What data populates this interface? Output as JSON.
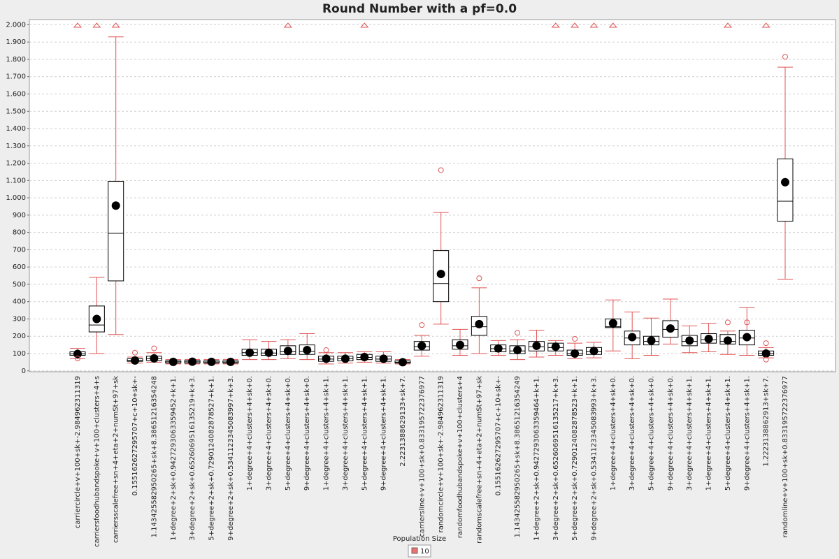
{
  "chart_data": {
    "type": "box",
    "title": "Round Number with a pf=0.0",
    "legend_title": "Population Size",
    "series": [
      {
        "name": "10",
        "color": "#f07070"
      }
    ],
    "box_color": "#000000",
    "whisker_color": "#e05555",
    "mean_color": "#000000",
    "grid": true,
    "ylim": [
      -5,
      2030
    ],
    "yticks": [
      0,
      100,
      200,
      300,
      400,
      500,
      600,
      700,
      800,
      900,
      {
        "value": 1000,
        "label": "1.000"
      },
      {
        "value": 1100,
        "label": "1.100"
      },
      {
        "value": 1200,
        "label": "1.200"
      },
      {
        "value": 1300,
        "label": "1.300"
      },
      {
        "value": 1400,
        "label": "1.400"
      },
      {
        "value": 1500,
        "label": "1.500"
      },
      {
        "value": 1600,
        "label": "1.600"
      },
      {
        "value": 1700,
        "label": "1.700"
      },
      {
        "value": 1800,
        "label": "1.800"
      },
      {
        "value": 1900,
        "label": "1.900"
      },
      {
        "value": 2000,
        "label": "2.000"
      }
    ],
    "categories": [
      "carriercircle+v+100+sk+-2.984962311319",
      "carriersfoodhubandspoke+v+100+clusters+4+s",
      "carriersscalefree+sn+4+eta+2+numSt+97+sk",
      "0.155162627295707+c+10+sk+-",
      "1.143425582950265+sk+8.38651216354248",
      "1+degree+2+sk+0.9427293063359452+k+1.",
      "3+degree+2+sk+0.6526069516135219+k+3.",
      "5+degree+2+sk+0.7290124082878527+k+1.",
      "9+degree+2+sk+0.5341123345083997+k+3.",
      "1+degree+4+clusters+4+sk+0.",
      "3+degree+4+clusters+4+sk+0.",
      "5+degree+4+clusters+4+sk+0.",
      "9+degree+4+clusters+4+sk+0.",
      "1+degree+4+clusters+4+sk+1.",
      "3+degree+4+clusters+4+sk+1.",
      "5+degree+4+clusters+4+sk+1.",
      "9+degree+4+clusters+4+sk+1.",
      "2.2231388629133+sk+7.",
      "carriersline+v+100+sk+0.833195722376977",
      "randomcircle+v+100+sk+-2.984962311319",
      "randomfoodhubandspoke+v+100+clusters+4",
      "randomscalefree+sn+4+eta+2+numSt+97+sk",
      "0.155162627295707+c+10+sk+-",
      "1.143425582950265+sk+8.38651216354249",
      "1+degree+2+sk+0.9427293063359464+k+1.",
      "3+degree+2+sk+0.6526069516135217+k+3.",
      "5+degree+2+sk+0.7290124082878523+k+1.",
      "9+degree+2+sk+0.5341123345083993+k+3.",
      "1+degree+4+clusters+4+sk+0.",
      "3+degree+4+clusters+4+sk+0.",
      "5+degree+4+clusters+4+sk+0.",
      "9+degree+4+clusters+4+sk+0.",
      "3+degree+4+clusters+4+sk+1.",
      "1+degree+4+clusters+4+sk+1.",
      "5+degree+4+clusters+4+sk+1.",
      "9+degree+4+clusters+4+sk+1.",
      "1.2223138862913+sk+7.",
      "randomline+v+100+sk+0.833195722376977"
    ],
    "boxes": [
      {
        "q1": 90,
        "median": 98,
        "q3": 110,
        "whisker_low": 70,
        "whisker_high": 130,
        "mean": 98,
        "outliers": [
          72
        ],
        "far_out": true
      },
      {
        "q1": 225,
        "median": 265,
        "q3": 375,
        "whisker_low": 100,
        "whisker_high": 540,
        "mean": 300,
        "outliers": [],
        "far_out": true
      },
      {
        "q1": 520,
        "median": 795,
        "q3": 1095,
        "whisker_low": 210,
        "whisker_high": 1930,
        "mean": 955,
        "outliers": [],
        "far_out": true
      },
      {
        "q1": 55,
        "median": 60,
        "q3": 70,
        "whisker_low": 45,
        "whisker_high": 80,
        "mean": 60,
        "outliers": [
          105
        ],
        "far_out": false
      },
      {
        "q1": 60,
        "median": 70,
        "q3": 85,
        "whisker_low": 50,
        "whisker_high": 105,
        "mean": 72,
        "outliers": [
          130
        ],
        "far_out": false
      },
      {
        "q1": 45,
        "median": 52,
        "q3": 58,
        "whisker_low": 40,
        "whisker_high": 65,
        "mean": 52,
        "outliers": [],
        "far_out": false
      },
      {
        "q1": 45,
        "median": 52,
        "q3": 60,
        "whisker_low": 40,
        "whisker_high": 66,
        "mean": 53,
        "outliers": [],
        "far_out": false
      },
      {
        "q1": 45,
        "median": 51,
        "q3": 58,
        "whisker_low": 40,
        "whisker_high": 65,
        "mean": 52,
        "outliers": [],
        "far_out": false
      },
      {
        "q1": 45,
        "median": 51,
        "q3": 58,
        "whisker_low": 40,
        "whisker_high": 66,
        "mean": 52,
        "outliers": [],
        "far_out": false
      },
      {
        "q1": 90,
        "median": 105,
        "q3": 125,
        "whisker_low": 65,
        "whisker_high": 180,
        "mean": 105,
        "outliers": [],
        "far_out": false
      },
      {
        "q1": 90,
        "median": 103,
        "q3": 125,
        "whisker_low": 65,
        "whisker_high": 170,
        "mean": 105,
        "outliers": [],
        "far_out": false
      },
      {
        "q1": 95,
        "median": 110,
        "q3": 145,
        "whisker_low": 70,
        "whisker_high": 180,
        "mean": 115,
        "outliers": [],
        "far_out": true
      },
      {
        "q1": 95,
        "median": 112,
        "q3": 150,
        "whisker_low": 65,
        "whisker_high": 215,
        "mean": 120,
        "outliers": [],
        "far_out": false
      },
      {
        "q1": 55,
        "median": 68,
        "q3": 85,
        "whisker_low": 40,
        "whisker_high": 105,
        "mean": 70,
        "outliers": [
          120
        ],
        "far_out": false
      },
      {
        "q1": 58,
        "median": 70,
        "q3": 85,
        "whisker_low": 45,
        "whisker_high": 105,
        "mean": 70,
        "outliers": [],
        "far_out": false
      },
      {
        "q1": 65,
        "median": 78,
        "q3": 95,
        "whisker_low": 50,
        "whisker_high": 110,
        "mean": 80,
        "outliers": [],
        "far_out": true
      },
      {
        "q1": 55,
        "median": 68,
        "q3": 85,
        "whisker_low": 45,
        "whisker_high": 110,
        "mean": 70,
        "outliers": [],
        "far_out": false
      },
      {
        "q1": 45,
        "median": 50,
        "q3": 58,
        "whisker_low": 40,
        "whisker_high": 65,
        "mean": 50,
        "outliers": [],
        "far_out": false
      },
      {
        "q1": 120,
        "median": 140,
        "q3": 170,
        "whisker_low": 85,
        "whisker_high": 205,
        "mean": 145,
        "outliers": [
          265
        ],
        "far_out": false
      },
      {
        "q1": 400,
        "median": 505,
        "q3": 695,
        "whisker_low": 270,
        "whisker_high": 915,
        "mean": 560,
        "outliers": [
          1160
        ],
        "far_out": false
      },
      {
        "q1": 125,
        "median": 145,
        "q3": 180,
        "whisker_low": 90,
        "whisker_high": 240,
        "mean": 150,
        "outliers": [],
        "far_out": false
      },
      {
        "q1": 205,
        "median": 255,
        "q3": 315,
        "whisker_low": 100,
        "whisker_high": 480,
        "mean": 270,
        "outliers": [
          535
        ],
        "far_out": false
      },
      {
        "q1": 110,
        "median": 128,
        "q3": 150,
        "whisker_low": 90,
        "whisker_high": 175,
        "mean": 130,
        "outliers": [],
        "far_out": false
      },
      {
        "q1": 100,
        "median": 115,
        "q3": 145,
        "whisker_low": 65,
        "whisker_high": 180,
        "mean": 120,
        "outliers": [
          220
        ],
        "far_out": false
      },
      {
        "q1": 115,
        "median": 140,
        "q3": 170,
        "whisker_low": 80,
        "whisker_high": 235,
        "mean": 145,
        "outliers": [],
        "far_out": false
      },
      {
        "q1": 115,
        "median": 135,
        "q3": 160,
        "whisker_low": 90,
        "whisker_high": 175,
        "mean": 140,
        "outliers": [],
        "far_out": true
      },
      {
        "q1": 90,
        "median": 100,
        "q3": 120,
        "whisker_low": 70,
        "whisker_high": 160,
        "mean": 100,
        "outliers": [
          185
        ],
        "far_out": true
      },
      {
        "q1": 95,
        "median": 110,
        "q3": 135,
        "whisker_low": 75,
        "whisker_high": 165,
        "mean": 115,
        "outliers": [],
        "far_out": true
      },
      {
        "q1": 250,
        "median": 255,
        "q3": 300,
        "whisker_low": 115,
        "whisker_high": 410,
        "mean": 275,
        "outliers": [],
        "far_out": true
      },
      {
        "q1": 150,
        "median": 190,
        "q3": 230,
        "whisker_low": 70,
        "whisker_high": 340,
        "mean": 195,
        "outliers": [],
        "far_out": false
      },
      {
        "q1": 150,
        "median": 170,
        "q3": 200,
        "whisker_low": 90,
        "whisker_high": 305,
        "mean": 175,
        "outliers": [],
        "far_out": false
      },
      {
        "q1": 195,
        "median": 240,
        "q3": 290,
        "whisker_low": 155,
        "whisker_high": 415,
        "mean": 245,
        "outliers": [],
        "far_out": false
      },
      {
        "q1": 145,
        "median": 170,
        "q3": 205,
        "whisker_low": 105,
        "whisker_high": 260,
        "mean": 175,
        "outliers": [],
        "far_out": false
      },
      {
        "q1": 160,
        "median": 180,
        "q3": 215,
        "whisker_low": 110,
        "whisker_high": 275,
        "mean": 185,
        "outliers": [],
        "far_out": false
      },
      {
        "q1": 155,
        "median": 170,
        "q3": 210,
        "whisker_low": 95,
        "whisker_high": 230,
        "mean": 175,
        "outliers": [
          280
        ],
        "far_out": true
      },
      {
        "q1": 150,
        "median": 190,
        "q3": 235,
        "whisker_low": 90,
        "whisker_high": 365,
        "mean": 195,
        "outliers": [
          280
        ],
        "far_out": false
      },
      {
        "q1": 90,
        "median": 100,
        "q3": 115,
        "whisker_low": 75,
        "whisker_high": 135,
        "mean": 100,
        "outliers": [
          65,
          160
        ],
        "far_out": true
      },
      {
        "q1": 865,
        "median": 980,
        "q3": 1225,
        "whisker_low": 530,
        "whisker_high": 1755,
        "mean": 1090,
        "outliers": [
          1815
        ],
        "far_out": false
      }
    ]
  }
}
